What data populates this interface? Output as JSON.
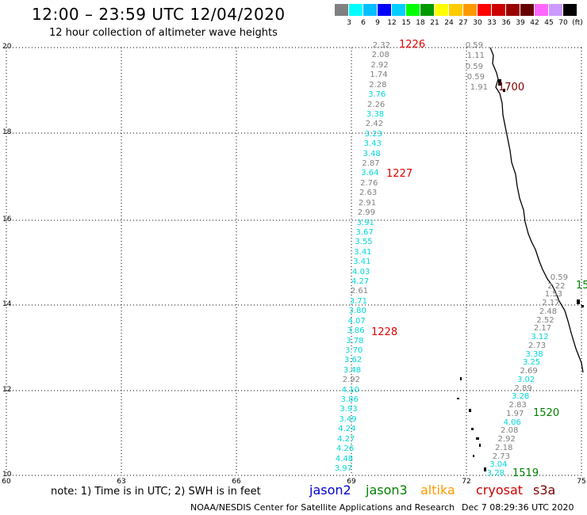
{
  "header": {
    "title": "12:00 – 23:59 UTC 12/04/2020",
    "subtitle": "12 hour collection of altimeter wave heights"
  },
  "legend": {
    "colors": [
      "#808080",
      "#00ffff",
      "#00bfff",
      "#0000ff",
      "#00cfff",
      "#00ff00",
      "#009900",
      "#ffff00",
      "#ffcc00",
      "#ff9900",
      "#ff0000",
      "#cc0000",
      "#990000",
      "#660000",
      "#ff66ff",
      "#cc99ff",
      "#000000"
    ],
    "labels": [
      "3",
      "6",
      "9",
      "12",
      "15",
      "18",
      "21",
      "24",
      "27",
      "30",
      "33",
      "36",
      "39",
      "42",
      "45",
      "70",
      "(ft)"
    ]
  },
  "axes": {
    "y_labels": [
      "20",
      "18",
      "16",
      "14",
      "12",
      "10"
    ],
    "x_labels": [
      "60",
      "63",
      "66",
      "69",
      "72",
      "75"
    ]
  },
  "tracks": [
    {
      "id": "1226",
      "color": "#e00000",
      "values": [
        {
          "v": "2.32",
          "c": "#808080"
        },
        {
          "v": "2.08",
          "c": "#808080"
        },
        {
          "v": "2.92",
          "c": "#808080"
        },
        {
          "v": "1.74",
          "c": "#808080"
        },
        {
          "v": "2.28",
          "c": "#808080"
        },
        {
          "v": "3.76",
          "c": "#00d8d8"
        },
        {
          "v": "2.26",
          "c": "#808080"
        },
        {
          "v": "3.38",
          "c": "#00d8d8"
        },
        {
          "v": "2.42",
          "c": "#808080"
        },
        {
          "v": "3.23",
          "c": "#00d8d8"
        },
        {
          "v": "3.43",
          "c": "#00d8d8"
        },
        {
          "v": "3.48",
          "c": "#00d8d8"
        },
        {
          "v": "2.87",
          "c": "#808080"
        },
        {
          "v": "3.64",
          "c": "#00d8d8"
        },
        {
          "v": "2.76",
          "c": "#808080"
        },
        {
          "v": "2.63",
          "c": "#808080"
        },
        {
          "v": "2.91",
          "c": "#808080"
        },
        {
          "v": "2.99",
          "c": "#808080"
        },
        {
          "v": "3.91",
          "c": "#00d8d8"
        },
        {
          "v": "3.67",
          "c": "#00d8d8"
        },
        {
          "v": "3.55",
          "c": "#00d8d8"
        },
        {
          "v": "3.41",
          "c": "#00d8d8"
        },
        {
          "v": "3.41",
          "c": "#00d8d8"
        },
        {
          "v": "4.03",
          "c": "#00d8d8"
        },
        {
          "v": "4.27",
          "c": "#00d8d8"
        },
        {
          "v": "2.61",
          "c": "#808080"
        },
        {
          "v": "3.71",
          "c": "#00d8d8"
        },
        {
          "v": "3.80",
          "c": "#00d8d8"
        },
        {
          "v": "4.07",
          "c": "#00d8d8"
        },
        {
          "v": "3.86",
          "c": "#00d8d8"
        },
        {
          "v": "3.78",
          "c": "#00d8d8"
        },
        {
          "v": "3.70",
          "c": "#00d8d8"
        },
        {
          "v": "3.62",
          "c": "#00d8d8"
        },
        {
          "v": "3.48",
          "c": "#00d8d8"
        },
        {
          "v": "2.92",
          "c": "#808080"
        },
        {
          "v": "4.10",
          "c": "#00d8d8"
        },
        {
          "v": "3.86",
          "c": "#00d8d8"
        },
        {
          "v": "3.93",
          "c": "#00d8d8"
        },
        {
          "v": "3.49",
          "c": "#00d8d8"
        },
        {
          "v": "4.24",
          "c": "#00d8d8"
        },
        {
          "v": "4.27",
          "c": "#00d8d8"
        },
        {
          "v": "4.26",
          "c": "#00d8d8"
        },
        {
          "v": "4.48",
          "c": "#00d8d8"
        },
        {
          "v": "3.97",
          "c": "#00d8d8"
        }
      ]
    },
    {
      "id": "1700",
      "color": "#800000",
      "values": [
        {
          "v": "0.59",
          "c": "#808080"
        },
        {
          "v": "1.11",
          "c": "#808080"
        },
        {
          "v": "0.59",
          "c": "#808080"
        },
        {
          "v": "0.59",
          "c": "#808080"
        },
        {
          "v": "1.91",
          "c": "#808080"
        }
      ]
    },
    {
      "id": "1520",
      "color": "#008000",
      "values": [
        {
          "v": "0.59",
          "c": "#808080"
        },
        {
          "v": "2.22",
          "c": "#808080"
        },
        {
          "v": "1.53",
          "c": "#808080"
        },
        {
          "v": "2.17",
          "c": "#808080"
        },
        {
          "v": "2.48",
          "c": "#808080"
        },
        {
          "v": "2.52",
          "c": "#808080"
        },
        {
          "v": "2.17",
          "c": "#808080"
        },
        {
          "v": "3.12",
          "c": "#00d8d8"
        },
        {
          "v": "2.73",
          "c": "#808080"
        },
        {
          "v": "3.38",
          "c": "#00d8d8"
        },
        {
          "v": "3.25",
          "c": "#00d8d8"
        },
        {
          "v": "2.69",
          "c": "#808080"
        },
        {
          "v": "3.02",
          "c": "#00d8d8"
        },
        {
          "v": "2.89",
          "c": "#808080"
        },
        {
          "v": "3.28",
          "c": "#00d8d8"
        },
        {
          "v": "2.83",
          "c": "#808080"
        },
        {
          "v": "1.97",
          "c": "#808080"
        },
        {
          "v": "4.06",
          "c": "#00d8d8"
        },
        {
          "v": "2.08",
          "c": "#808080"
        },
        {
          "v": "2.92",
          "c": "#808080"
        },
        {
          "v": "2.18",
          "c": "#808080"
        },
        {
          "v": "2.73",
          "c": "#808080"
        },
        {
          "v": "3.04",
          "c": "#00d8d8"
        },
        {
          "v": "3.28",
          "c": "#00d8d8"
        }
      ]
    }
  ],
  "pass_labels": [
    {
      "text": "1226",
      "color": "#e00000"
    },
    {
      "text": "1227",
      "color": "#e00000"
    },
    {
      "text": "1228",
      "color": "#e00000"
    },
    {
      "text": "1700",
      "color": "#800000"
    },
    {
      "text": "15",
      "color": "#008000"
    },
    {
      "text": "1520",
      "color": "#008000"
    },
    {
      "text": "1519",
      "color": "#008000"
    }
  ],
  "footer": {
    "note": "note:  1) Time is in UTC; 2) SWH is in feet",
    "satellites": [
      {
        "name": "jason2",
        "color": "#0000cc"
      },
      {
        "name": "jason3",
        "color": "#008000"
      },
      {
        "name": "altika",
        "color": "#ff9900"
      },
      {
        "name": "cryosat",
        "color": "#cc0000"
      },
      {
        "name": "s3a",
        "color": "#800000"
      }
    ],
    "credit": "NOAA/NESDIS Center for Satellite Applications and Research",
    "timestamp": "Dec  7 08:29:36 UTC 2020"
  }
}
